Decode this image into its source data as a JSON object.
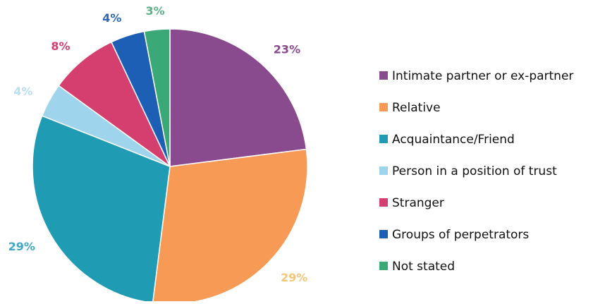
{
  "chart_data": {
    "type": "pie",
    "title": "",
    "slices": [
      {
        "name": "Intimate partner or ex-partner",
        "value": 23,
        "label": "23%",
        "color": "#8a4a8e",
        "label_color": "#8a4a8e"
      },
      {
        "name": "Relative",
        "value": 29,
        "label": "29%",
        "color": "#f79a55",
        "label_color": "#f5c57a"
      },
      {
        "name": "Acquaintance/Friend",
        "value": 29,
        "label": "29%",
        "color": "#1f9bb3",
        "label_color": "#3fa6c4"
      },
      {
        "name": "Person in a position of trust",
        "value": 4,
        "label": "4%",
        "color": "#9ed4ec",
        "label_color": "#b8e0f2"
      },
      {
        "name": "Stranger",
        "value": 8,
        "label": "8%",
        "color": "#d43f6f",
        "label_color": "#d43f6f"
      },
      {
        "name": "Groups of perpetrators",
        "value": 4,
        "label": "4%",
        "color": "#1d5fb5",
        "label_color": "#2f68b5"
      },
      {
        "name": "Not stated",
        "value": 3,
        "label": "3%",
        "color": "#3aa977",
        "label_color": "#5bb187"
      }
    ],
    "legend": {
      "placement": "right"
    }
  }
}
